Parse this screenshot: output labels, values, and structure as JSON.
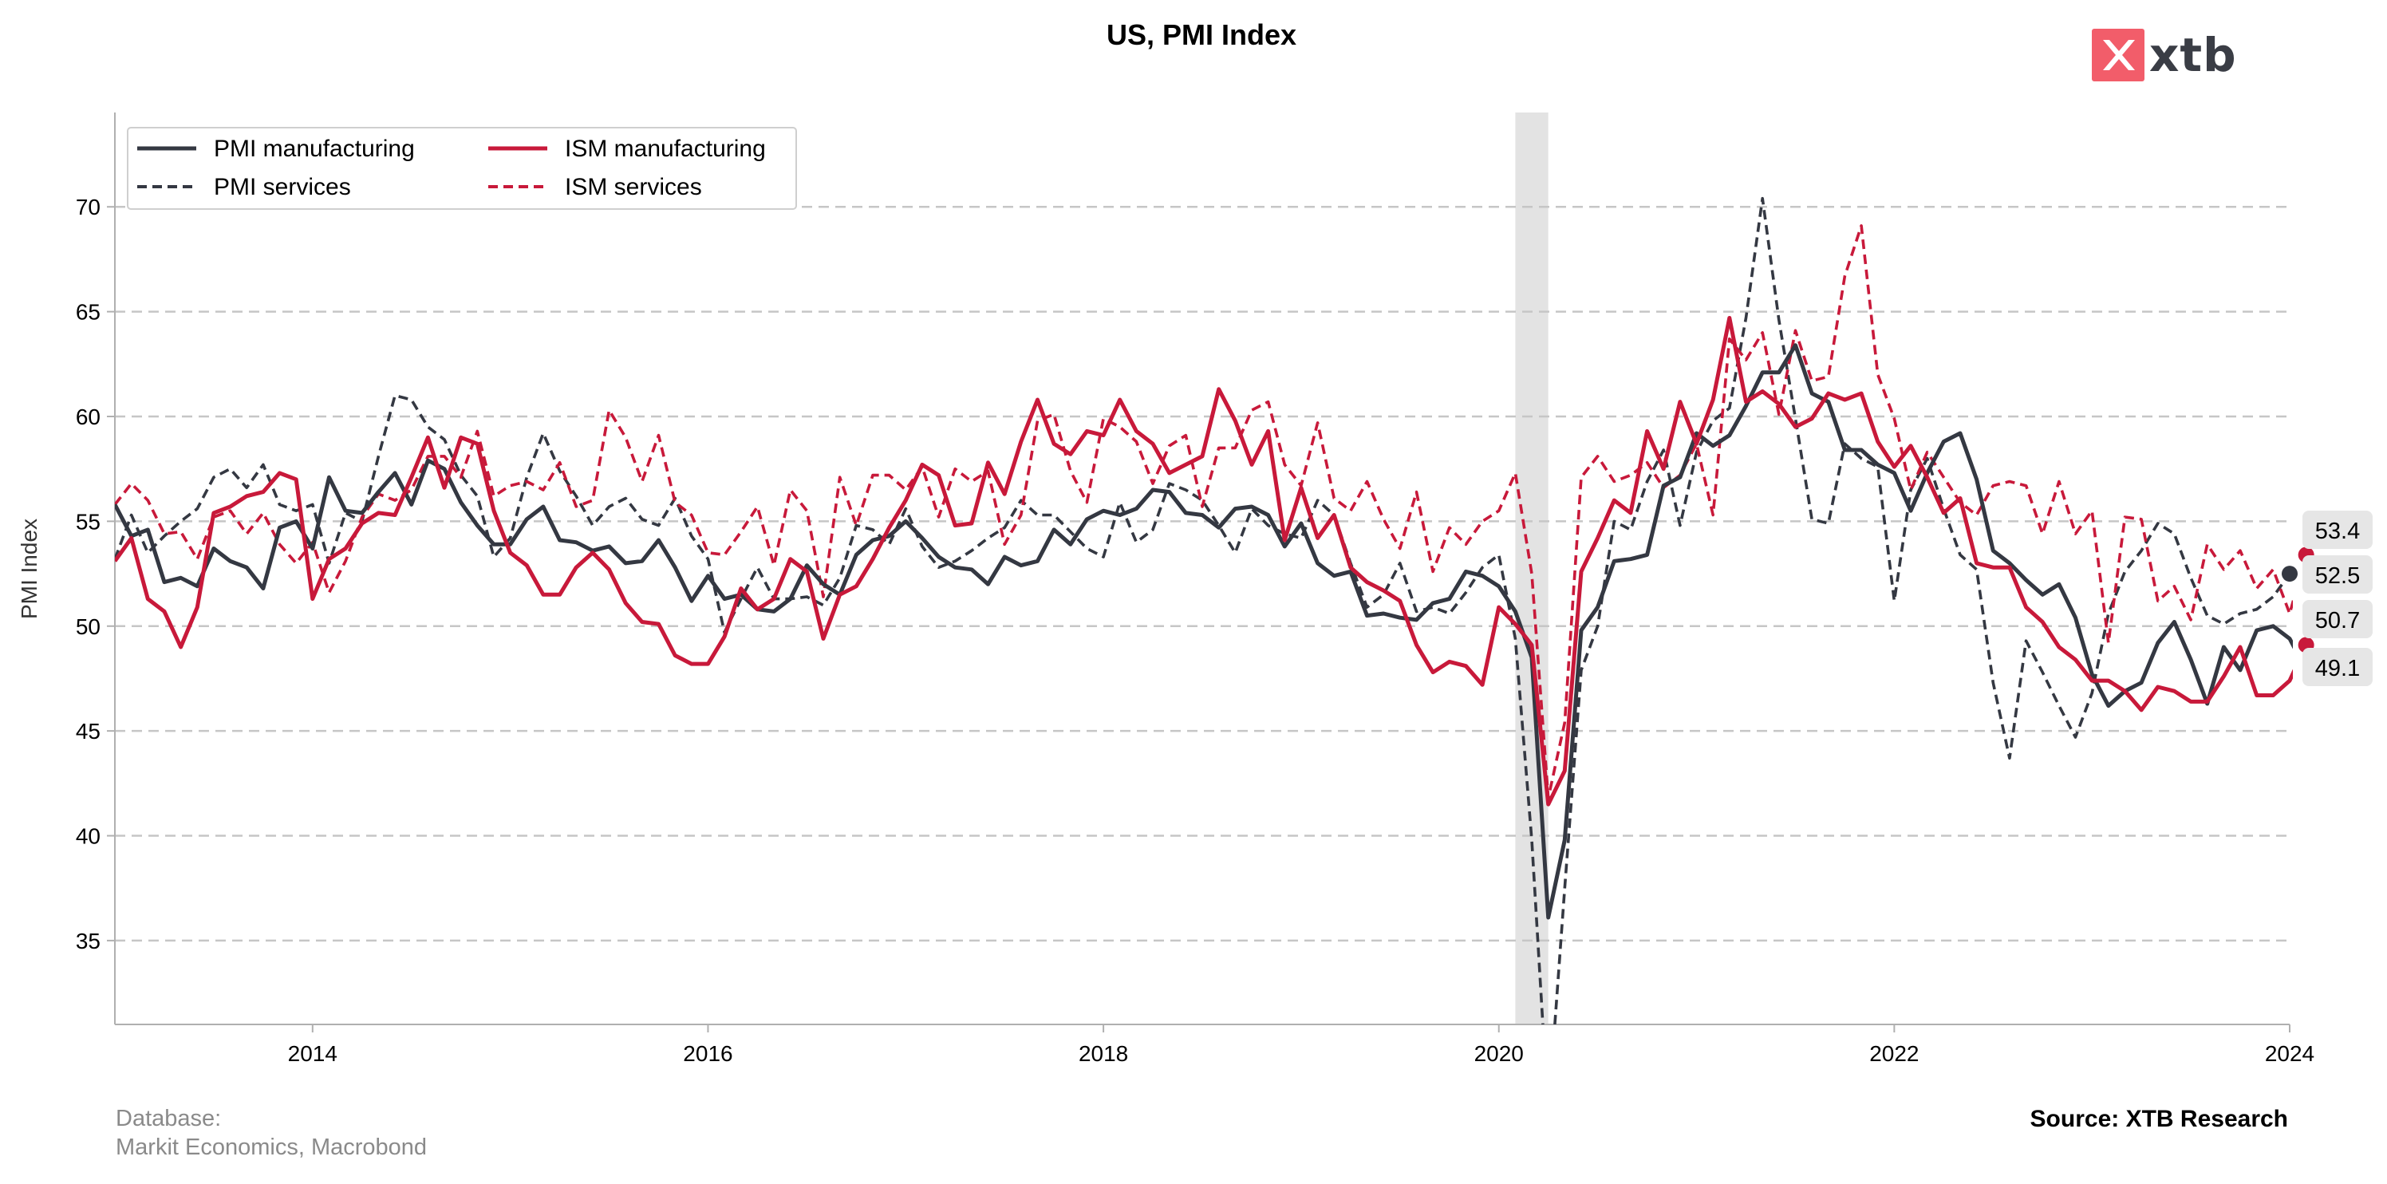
{
  "chart_data": {
    "type": "line",
    "title": "US, PMI Index",
    "xlabel": "",
    "ylabel": "PMI Index",
    "xlim": [
      "2013-01",
      "2024-01"
    ],
    "ylim": [
      31,
      74.5
    ],
    "x_ticks": [
      "2014",
      "2016",
      "2018",
      "2020",
      "2022",
      "2024"
    ],
    "y_ticks": [
      35,
      40,
      45,
      50,
      55,
      60,
      65,
      70
    ],
    "grid": "horizontal dashed",
    "legend_position": "top-left",
    "shaded_period": [
      "2020-02",
      "2020-04"
    ],
    "colors": {
      "pmi": "#343842",
      "ism": "#c8193a",
      "shade": "#e3e3e3",
      "grid": "#c6c6c6",
      "label_box": "#e6e6e6"
    },
    "series": [
      {
        "name": "PMI manufacturing",
        "style": "solid",
        "color": "#343842",
        "start": "2013-01",
        "values": [
          55.8,
          54.3,
          54.6,
          52.1,
          52.3,
          51.9,
          53.7,
          53.1,
          52.8,
          51.8,
          54.7,
          55.0,
          53.7,
          57.1,
          55.5,
          55.4,
          56.4,
          57.3,
          55.8,
          57.9,
          57.5,
          55.9,
          54.8,
          53.9,
          53.9,
          55.1,
          55.7,
          54.1,
          54.0,
          53.6,
          53.8,
          53.0,
          53.1,
          54.1,
          52.8,
          51.2,
          52.4,
          51.3,
          51.5,
          50.8,
          50.7,
          51.3,
          52.9,
          52.0,
          51.5,
          53.4,
          54.1,
          54.3,
          55.0,
          54.2,
          53.3,
          52.8,
          52.7,
          52.0,
          53.3,
          52.9,
          53.1,
          54.6,
          53.9,
          55.1,
          55.5,
          55.3,
          55.6,
          56.5,
          56.4,
          55.4,
          55.3,
          54.7,
          55.6,
          55.7,
          55.3,
          53.8,
          54.9,
          53.0,
          52.4,
          52.6,
          50.5,
          50.6,
          50.4,
          50.3,
          51.1,
          51.3,
          52.6,
          52.4,
          51.9,
          50.7,
          48.5,
          36.1,
          39.8,
          49.8,
          50.9,
          53.1,
          53.2,
          53.4,
          56.7,
          57.1,
          59.2,
          58.6,
          59.1,
          60.5,
          62.1,
          62.1,
          63.4,
          61.1,
          60.7,
          58.4,
          58.4,
          57.7,
          57.3,
          55.5,
          57.3,
          58.8,
          59.2,
          57.0,
          53.6,
          53.0,
          52.2,
          51.5,
          52.0,
          50.4,
          47.7,
          46.2,
          46.9,
          47.3,
          49.2,
          50.2,
          48.4,
          46.3,
          49.0,
          47.9,
          49.8,
          50.0,
          49.4,
          47.9,
          50.7
        ]
      },
      {
        "name": "ISM manufacturing",
        "style": "solid",
        "color": "#c8193a",
        "start": "2013-01",
        "values": [
          53.1,
          54.2,
          51.3,
          50.7,
          49.0,
          50.9,
          55.4,
          55.7,
          56.2,
          56.4,
          57.3,
          57.0,
          51.3,
          53.2,
          53.7,
          54.9,
          55.4,
          55.3,
          57.1,
          59.0,
          56.6,
          59.0,
          58.7,
          55.5,
          53.5,
          52.9,
          51.5,
          51.5,
          52.8,
          53.5,
          52.7,
          51.1,
          50.2,
          50.1,
          48.6,
          48.2,
          48.2,
          49.5,
          51.8,
          50.8,
          51.3,
          53.2,
          52.6,
          49.4,
          51.5,
          51.9,
          53.2,
          54.7,
          56.0,
          57.7,
          57.2,
          54.8,
          54.9,
          57.8,
          56.3,
          58.8,
          60.8,
          58.7,
          58.2,
          59.3,
          59.1,
          60.8,
          59.3,
          58.7,
          57.3,
          57.7,
          58.1,
          61.3,
          59.8,
          57.7,
          59.3,
          54.1,
          56.6,
          54.2,
          55.3,
          52.8,
          52.1,
          51.7,
          51.2,
          49.1,
          47.8,
          48.3,
          48.1,
          47.2,
          50.9,
          50.1,
          49.1,
          41.5,
          43.1,
          52.6,
          54.2,
          56.0,
          55.4,
          59.3,
          57.5,
          60.7,
          58.7,
          60.8,
          64.7,
          60.7,
          61.2,
          60.6,
          59.5,
          59.9,
          61.1,
          60.8,
          61.1,
          58.8,
          57.6,
          58.6,
          57.1,
          55.4,
          56.1,
          53.0,
          52.8,
          52.8,
          50.9,
          50.2,
          49.0,
          48.4,
          47.4,
          47.4,
          46.9,
          46.0,
          47.1,
          46.9,
          46.4,
          46.4,
          47.6,
          49.0,
          46.7,
          46.7,
          47.4,
          49.1
        ]
      },
      {
        "name": "PMI services",
        "style": "dashed",
        "color": "#343842",
        "start": "2013-01",
        "values": [
          53.2,
          55.3,
          53.5,
          54.3,
          55.0,
          55.6,
          57.1,
          57.5,
          56.6,
          57.7,
          55.8,
          55.5,
          55.8,
          53.0,
          55.4,
          55.0,
          58.1,
          61.0,
          60.8,
          59.5,
          58.9,
          57.2,
          56.2,
          53.3,
          54.2,
          57.1,
          59.2,
          57.4,
          56.2,
          54.8,
          55.7,
          56.1,
          55.1,
          54.8,
          56.1,
          54.3,
          53.2,
          49.7,
          51.3,
          52.8,
          51.3,
          51.3,
          51.4,
          51.0,
          52.3,
          54.8,
          54.6,
          53.9,
          55.6,
          53.8,
          52.8,
          53.1,
          53.6,
          54.2,
          54.7,
          56.0,
          55.3,
          55.3,
          54.5,
          53.7,
          53.3,
          55.9,
          54.0,
          54.6,
          56.8,
          56.5,
          56.0,
          54.8,
          53.5,
          55.6,
          54.8,
          54.4,
          54.2,
          56.0,
          55.3,
          53.0,
          50.9,
          51.5,
          53.0,
          50.7,
          50.9,
          50.6,
          51.6,
          52.8,
          53.4,
          49.4,
          39.8,
          26.7,
          37.5,
          47.9,
          50.0,
          55.0,
          54.6,
          56.9,
          58.4,
          54.8,
          58.3,
          59.8,
          60.4,
          64.7,
          70.4,
          64.6,
          59.9,
          55.1,
          54.9,
          58.7,
          58.0,
          57.6,
          51.2,
          56.5,
          58.0,
          55.6,
          53.4,
          52.7,
          47.3,
          43.7,
          49.3,
          47.8,
          46.2,
          44.7,
          46.8,
          50.6,
          52.6,
          53.6,
          54.9,
          54.4,
          52.3,
          50.5,
          50.1,
          50.6,
          50.8,
          51.4,
          52.5
        ]
      },
      {
        "name": "ISM services",
        "style": "dashed",
        "color": "#c8193a",
        "start": "2013-01",
        "values": [
          55.8,
          56.8,
          56.0,
          54.4,
          54.5,
          53.2,
          55.2,
          55.5,
          54.4,
          55.4,
          53.9,
          53.0,
          54.0,
          51.6,
          53.1,
          55.2,
          56.3,
          56.0,
          56.5,
          58.1,
          58.1,
          57.1,
          59.3,
          56.2,
          56.7,
          56.9,
          56.5,
          57.8,
          55.7,
          56.0,
          60.3,
          59.0,
          56.9,
          59.1,
          55.9,
          55.3,
          53.5,
          53.4,
          54.5,
          55.7,
          52.9,
          56.5,
          55.5,
          51.4,
          57.1,
          54.8,
          57.2,
          57.2,
          56.5,
          57.6,
          55.2,
          57.5,
          56.9,
          57.4,
          53.9,
          55.3,
          59.8,
          60.1,
          57.4,
          55.9,
          59.9,
          59.5,
          58.8,
          56.8,
          58.6,
          59.1,
          55.7,
          58.5,
          58.5,
          60.3,
          60.7,
          57.7,
          56.7,
          59.7,
          56.1,
          55.5,
          56.9,
          55.1,
          53.7,
          56.4,
          52.6,
          54.7,
          53.9,
          55.0,
          55.5,
          57.3,
          52.5,
          41.8,
          45.4,
          57.1,
          58.1,
          56.9,
          57.2,
          57.8,
          56.6,
          57.2,
          58.7,
          55.3,
          63.7,
          62.7,
          64.0,
          60.1,
          64.1,
          61.7,
          61.9,
          66.7,
          69.1,
          62.0,
          59.9,
          56.5,
          58.3,
          57.1,
          55.9,
          55.3,
          56.7,
          56.9,
          56.7,
          54.4,
          56.9,
          54.4,
          55.5,
          49.2,
          55.2,
          55.1,
          51.2,
          51.9,
          50.3,
          53.9,
          52.7,
          53.6,
          51.8,
          52.7,
          50.6,
          53.4
        ]
      }
    ],
    "end_labels": [
      "53.4",
      "52.5",
      "50.7",
      "49.1"
    ]
  },
  "footer": {
    "database_label": "Database:",
    "database_sources": "Markit Economics, Macrobond",
    "source": "Source: XTB Research"
  },
  "logo": {
    "text": "xtb",
    "mark_color": "#f25d6a"
  }
}
